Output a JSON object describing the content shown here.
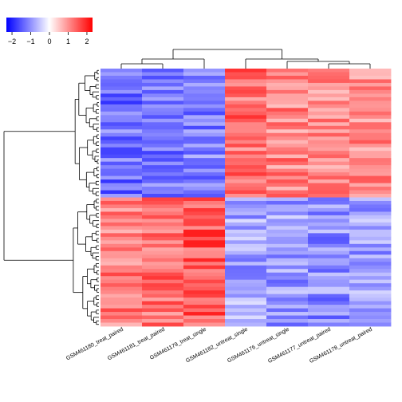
{
  "chart_data": {
    "type": "heatmap",
    "title": "",
    "xlabel": "",
    "ylabel": "",
    "columns": [
      "GSM461180_treat_paired",
      "GSM461181_treat_paired",
      "GSM461179_treat_single",
      "GSM461182_untreat_single",
      "GSM461176_untreat_single",
      "GSM461177_untreat_paired",
      "GSM461178_untreat_paired"
    ],
    "row_count": 72,
    "row_groups": [
      {
        "rows": 36,
        "mean_values": [
          -1.3,
          -1.3,
          -1.1,
          1.3,
          1.1,
          1.0,
          1.0
        ]
      },
      {
        "rows": 36,
        "mean_values": [
          1.2,
          1.3,
          1.5,
          -0.8,
          -0.9,
          -1.0,
          -0.9
        ]
      }
    ],
    "color_scale": {
      "min": -2.3,
      "max": 2.3,
      "low_color": "#0000ff",
      "mid_color": "#ffffff",
      "high_color": "#ff0000",
      "ticks": [
        "-2",
        "-1",
        "0",
        "1",
        "2"
      ]
    },
    "row_dendrogram": "left",
    "column_dendrogram": "top",
    "legend_placement": "top-left"
  }
}
